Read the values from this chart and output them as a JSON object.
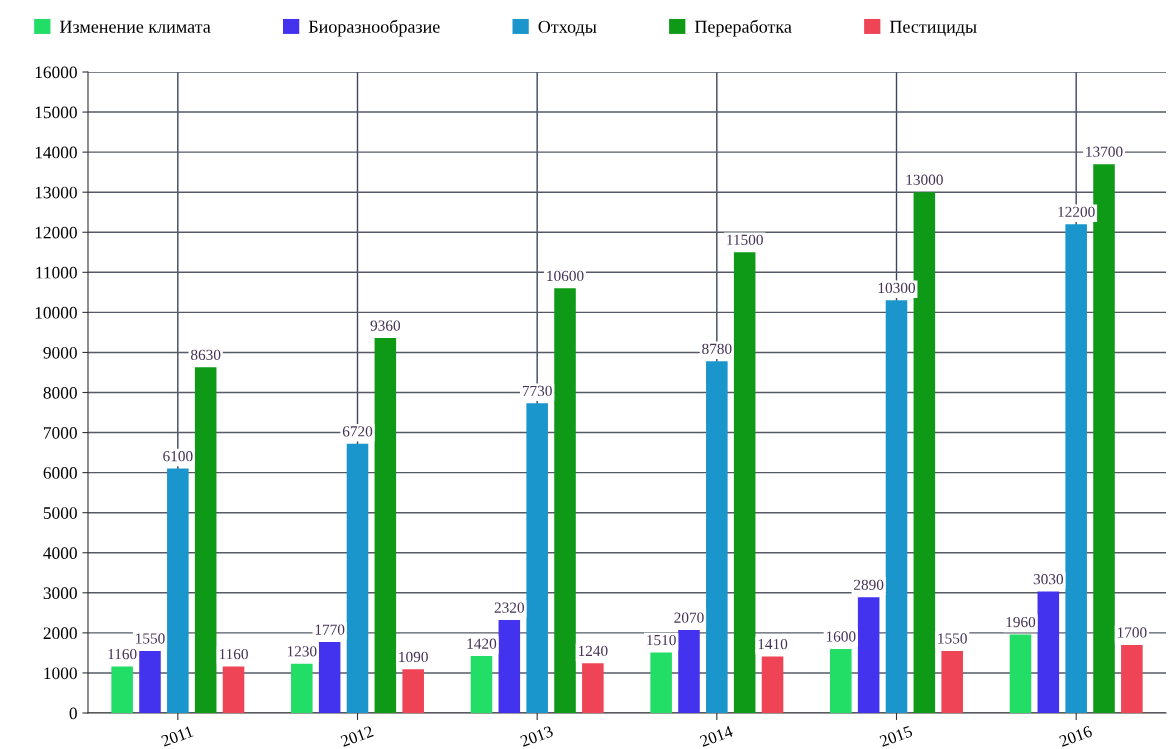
{
  "chart_data": {
    "type": "bar",
    "categories": [
      "2011",
      "2012",
      "2013",
      "2014",
      "2015",
      "2016"
    ],
    "series": [
      {
        "name": "Изменение климата",
        "color": "#22dd66",
        "values": [
          1160,
          1230,
          1420,
          1510,
          1600,
          1960
        ]
      },
      {
        "name": "Биоразнообразие",
        "color": "#4433ee",
        "values": [
          1550,
          1770,
          2320,
          2070,
          2890,
          3030
        ]
      },
      {
        "name": "Отходы",
        "color": "#1a96cc",
        "values": [
          6100,
          6720,
          7730,
          8780,
          10300,
          12200
        ]
      },
      {
        "name": "Переработка",
        "color": "#0e9a17",
        "values": [
          8630,
          9360,
          10600,
          11500,
          13000,
          13700
        ]
      },
      {
        "name": "Пестициды",
        "color": "#ee4455",
        "values": [
          1160,
          1090,
          1240,
          1410,
          1550,
          1700
        ]
      }
    ],
    "ylim": [
      0,
      16000
    ],
    "yticks": [
      0,
      1000,
      2000,
      3000,
      4000,
      5000,
      6000,
      7000,
      8000,
      9000,
      10000,
      11000,
      12000,
      13000,
      14000,
      15000,
      16000
    ],
    "grid": true,
    "legend": "top",
    "data_labels": true
  }
}
